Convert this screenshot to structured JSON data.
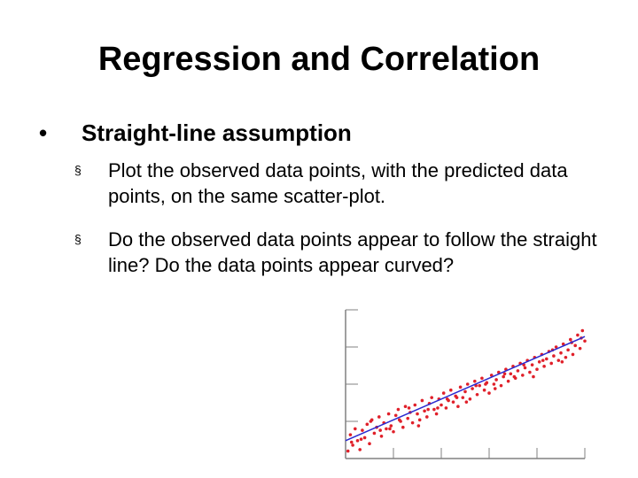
{
  "slide": {
    "title": "Regression and Correlation",
    "bullet": {
      "marker": "•",
      "text": "Straight-line assumption",
      "sub_items": [
        {
          "marker": "§",
          "text": "Plot the observed data points, with the predicted data points, on the same scatter-plot."
        },
        {
          "marker": "§",
          "text": "Do the observed data points appear to follow the straight line? Do the data points appear curved?"
        }
      ]
    }
  },
  "chart_data": {
    "type": "scatter",
    "title": "",
    "xlabel": "",
    "ylabel": "",
    "xlim": [
      0,
      10
    ],
    "ylim": [
      0,
      10
    ],
    "grid": false,
    "x_tick_count": 6,
    "y_tick_count": 5,
    "colors": {
      "points": "#e0202a",
      "line": "#2a2ad0",
      "axes": "#808080"
    },
    "fit_line": {
      "x": [
        0,
        10
      ],
      "y": [
        1.2,
        8.2
      ]
    },
    "points": {
      "x": [
        0.1,
        0.2,
        0.3,
        0.4,
        0.5,
        0.6,
        0.7,
        0.8,
        0.9,
        1.0,
        1.1,
        1.2,
        1.3,
        1.4,
        1.5,
        1.6,
        1.7,
        1.8,
        1.9,
        2.0,
        2.1,
        2.2,
        2.3,
        2.4,
        2.5,
        2.6,
        2.7,
        2.8,
        2.9,
        3.0,
        3.1,
        3.2,
        3.3,
        3.4,
        3.5,
        3.6,
        3.7,
        3.8,
        3.9,
        4.0,
        4.1,
        4.2,
        4.3,
        4.4,
        4.5,
        4.6,
        4.7,
        4.8,
        4.9,
        5.0,
        5.1,
        5.2,
        5.3,
        5.4,
        5.5,
        5.6,
        5.7,
        5.8,
        5.9,
        6.0,
        6.1,
        6.2,
        6.3,
        6.4,
        6.5,
        6.6,
        6.7,
        6.8,
        6.9,
        7.0,
        7.1,
        7.2,
        7.3,
        7.4,
        7.5,
        7.6,
        7.7,
        7.8,
        7.9,
        8.0,
        8.1,
        8.2,
        8.3,
        8.4,
        8.5,
        8.6,
        8.7,
        8.8,
        8.9,
        9.0,
        9.1,
        9.2,
        9.3,
        9.4,
        9.5,
        9.6,
        9.7,
        9.8,
        9.9,
        10.0,
        0.25,
        0.65,
        1.05,
        1.45,
        1.85,
        2.25,
        2.65,
        3.05,
        3.45,
        3.85,
        4.25,
        4.65,
        5.05,
        5.45,
        5.85,
        6.25,
        6.65,
        7.05,
        7.45,
        7.85,
        8.25,
        8.65,
        9.05,
        9.45,
        9.85
      ],
      "y": [
        0.5,
        1.6,
        0.9,
        2.0,
        1.2,
        0.6,
        1.9,
        1.4,
        2.3,
        1.0,
        2.6,
        1.7,
        2.1,
        2.8,
        1.5,
        2.4,
        2.0,
        3.0,
        2.2,
        1.8,
        2.9,
        3.3,
        2.5,
        2.1,
        3.5,
        2.7,
        3.1,
        2.4,
        3.6,
        3.0,
        2.6,
        3.9,
        3.2,
        2.8,
        3.7,
        4.1,
        3.3,
        3.0,
        4.0,
        3.6,
        4.4,
        3.4,
        3.9,
        4.6,
        3.8,
        4.2,
        3.5,
        4.8,
        4.1,
        4.5,
        5.0,
        4.0,
        4.7,
        5.2,
        4.3,
        4.9,
        5.4,
        4.6,
        5.1,
        4.4,
        5.6,
        5.0,
        5.3,
        5.8,
        4.9,
        5.5,
        6.0,
        5.2,
        5.7,
        6.2,
        5.4,
        5.9,
        6.4,
        5.6,
        6.1,
        6.6,
        5.8,
        6.3,
        6.8,
        6.0,
        6.5,
        7.0,
        6.2,
        6.7,
        7.2,
        6.4,
        6.9,
        7.5,
        6.6,
        7.1,
        7.7,
        6.8,
        7.3,
        8.0,
        7.0,
        7.6,
        8.3,
        7.4,
        8.6,
        7.9,
        1.1,
        1.3,
        2.5,
        1.9,
        2.0,
        2.6,
        3.4,
        2.2,
        3.3,
        3.4,
        4.0,
        4.1,
        3.8,
        4.9,
        5.0,
        4.7,
        5.7,
        5.5,
        6.3,
        5.5,
        6.6,
        7.3,
        6.5,
        7.8,
        8.1
      ]
    }
  }
}
